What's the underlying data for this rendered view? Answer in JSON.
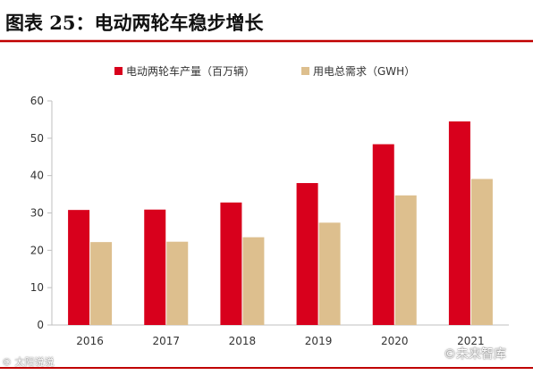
{
  "watermarks": {
    "left": "© 太阳说说",
    "right": "©未来智库"
  },
  "colors": {
    "header_line": "#c00000",
    "bottom_line": "#c00000",
    "series1": "#d8001c",
    "series2": "#ddbf8e",
    "axis": "#bfbfbf",
    "text": "#333333"
  },
  "chart_data": {
    "type": "bar",
    "title": "图表 25：电动两轮车稳步增长",
    "categories": [
      "2016",
      "2017",
      "2018",
      "2019",
      "2020",
      "2021"
    ],
    "series": [
      {
        "name": "电动两轮车产量（百万辆）",
        "values": [
          30.8,
          30.9,
          32.8,
          38.0,
          48.4,
          54.5
        ]
      },
      {
        "name": "用电总需求（GWH）",
        "values": [
          22.2,
          22.3,
          23.5,
          27.4,
          34.7,
          39.1
        ]
      }
    ],
    "ylim": [
      0,
      60
    ],
    "yticks": [
      0,
      10,
      20,
      30,
      40,
      50,
      60
    ],
    "grid": false,
    "legend_position": "top-center"
  }
}
